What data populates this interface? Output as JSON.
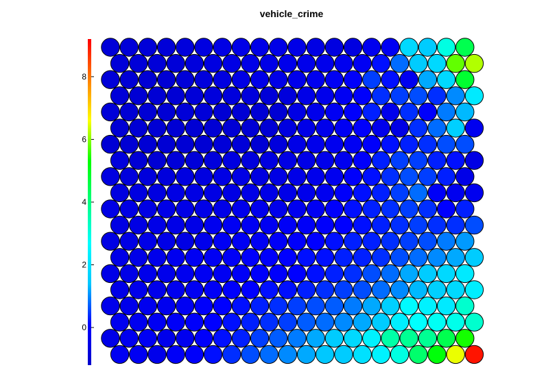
{
  "chart_data": {
    "type": "heatmap",
    "subtype": "hexagonal-som-component-plane",
    "title": "vehicle_crime",
    "xlabel": "",
    "ylabel": "",
    "colorbar": {
      "location": "left",
      "range": [
        -1.2,
        9.2
      ],
      "ticks": [
        0,
        2,
        4,
        6,
        8
      ],
      "tick_labels": [
        "0",
        "2",
        "4",
        "6",
        "8"
      ],
      "colormap": [
        "#0000cc",
        "#0000ff",
        "#00c8ff",
        "#00ffff",
        "#00ff80",
        "#00ff00",
        "#ffff00",
        "#ff8000",
        "#ff0000"
      ]
    },
    "grid": {
      "cols": 20,
      "rows": 20,
      "odd_row_offset": "right"
    },
    "note_values": "values are approximate reads from the colorscale; rows listed top to bottom",
    "values": [
      [
        -0.9,
        -0.9,
        -0.9,
        -0.9,
        -0.8,
        -0.7,
        -0.6,
        -0.5,
        -0.5,
        -0.5,
        -0.5,
        -0.6,
        -0.7,
        -0.7,
        -0.3,
        -0.2,
        1.8,
        1.5,
        3.0,
        4.5
      ],
      [
        -0.9,
        -0.9,
        -0.9,
        -0.9,
        -0.8,
        -0.7,
        -0.6,
        -0.5,
        -0.5,
        -0.4,
        -0.4,
        -0.4,
        -0.3,
        -0.2,
        0.2,
        0.8,
        1.5,
        1.8,
        5.8,
        6.2
      ],
      [
        -0.9,
        -1.0,
        -1.0,
        -1.0,
        -0.9,
        -0.8,
        -0.7,
        -0.6,
        -0.5,
        -0.5,
        -0.4,
        -0.3,
        -0.2,
        0.0,
        0.5,
        0.2,
        -0.3,
        1.2,
        1.8,
        4.8
      ],
      [
        -0.9,
        -1.0,
        -1.0,
        -1.0,
        -0.9,
        -0.8,
        -0.8,
        -0.8,
        -0.9,
        -0.8,
        -0.5,
        -0.4,
        -0.2,
        0.0,
        0.4,
        0.5,
        0.6,
        0.4,
        1.0,
        2.2
      ],
      [
        -0.9,
        -1.0,
        -1.0,
        -1.0,
        -0.9,
        -0.9,
        -1.0,
        -1.0,
        -1.0,
        -1.0,
        -0.6,
        -0.4,
        -0.2,
        0.0,
        0.3,
        -0.4,
        0.4,
        0.0,
        0.9,
        1.3
      ],
      [
        -1.0,
        -1.0,
        -1.0,
        -1.0,
        -1.0,
        -1.0,
        -1.0,
        -1.0,
        -1.0,
        -0.7,
        -0.5,
        -0.4,
        -0.2,
        0.0,
        -0.4,
        -0.6,
        0.4,
        0.8,
        1.6,
        -0.3
      ],
      [
        -1.0,
        -1.0,
        -1.0,
        -1.0,
        -1.0,
        -1.0,
        -0.9,
        -0.9,
        -1.0,
        -0.8,
        -0.5,
        -0.4,
        -0.3,
        -0.2,
        0.0,
        0.2,
        0.3,
        0.4,
        0.6,
        0.6
      ],
      [
        -0.8,
        -1.0,
        -1.0,
        -0.9,
        -0.9,
        -0.8,
        -0.7,
        -0.8,
        -0.7,
        -0.6,
        -0.5,
        -0.4,
        -0.3,
        0.0,
        0.3,
        0.5,
        0.5,
        0.3,
        0.2,
        -0.6
      ],
      [
        -0.7,
        -0.8,
        -0.8,
        -0.8,
        -0.7,
        -0.7,
        -0.6,
        -0.6,
        -0.7,
        -0.6,
        -0.5,
        -0.4,
        -0.3,
        0.0,
        0.2,
        0.4,
        0.6,
        0.5,
        0.3,
        -0.5
      ],
      [
        -0.7,
        -0.7,
        -0.7,
        -0.6,
        -0.6,
        -0.6,
        -0.6,
        -0.5,
        -0.5,
        -0.5,
        -0.4,
        -0.3,
        0.0,
        0.2,
        0.3,
        0.5,
        0.8,
        -0.1,
        -0.3,
        -0.3
      ],
      [
        -0.6,
        -0.6,
        -0.6,
        -0.5,
        -0.5,
        -0.5,
        -0.5,
        -0.4,
        -0.4,
        -0.4,
        -0.3,
        -0.2,
        0.0,
        0.2,
        0.3,
        0.4,
        0.5,
        0.4,
        0.1,
        0.3
      ],
      [
        -0.6,
        -0.6,
        -0.5,
        -0.5,
        -0.5,
        -0.3,
        -0.2,
        -0.2,
        -0.2,
        -0.1,
        -0.1,
        0.0,
        0.1,
        0.2,
        0.3,
        0.4,
        0.5,
        0.4,
        0.4,
        0.6
      ],
      [
        -0.6,
        -0.6,
        -0.5,
        -0.5,
        -0.6,
        -0.4,
        -0.2,
        -0.2,
        -0.2,
        -0.1,
        0.0,
        0.1,
        0.2,
        0.3,
        0.3,
        0.4,
        0.5,
        0.6,
        0.9,
        1.1
      ],
      [
        -0.5,
        -0.5,
        -0.4,
        -0.3,
        -0.2,
        -0.2,
        -0.1,
        0.0,
        0.0,
        0.1,
        0.2,
        0.2,
        0.3,
        0.3,
        0.4,
        0.6,
        0.8,
        1.0,
        1.2,
        1.5
      ],
      [
        -0.5,
        -0.5,
        -0.4,
        -0.4,
        -0.3,
        -0.2,
        -0.2,
        -0.1,
        0.0,
        0.0,
        0.1,
        0.2,
        0.3,
        0.4,
        0.6,
        0.8,
        1.2,
        1.5,
        1.8,
        2.2
      ],
      [
        -0.5,
        -0.4,
        -0.4,
        -0.3,
        -0.2,
        -0.1,
        0.0,
        0.1,
        0.2,
        0.2,
        0.3,
        0.4,
        0.5,
        0.6,
        0.8,
        1.0,
        1.3,
        1.6,
        1.8,
        2.3
      ],
      [
        -0.4,
        -0.4,
        -0.3,
        -0.3,
        -0.2,
        0.0,
        0.1,
        0.2,
        0.3,
        0.4,
        0.5,
        0.6,
        0.7,
        0.9,
        1.2,
        1.6,
        2.6,
        2.4,
        2.2,
        3.2
      ],
      [
        -0.3,
        -0.3,
        -0.2,
        -0.1,
        0.0,
        0.1,
        0.2,
        0.3,
        0.4,
        0.5,
        0.7,
        0.8,
        1.0,
        1.2,
        1.5,
        2.3,
        2.7,
        2.8,
        2.9,
        3.2
      ],
      [
        -0.5,
        -0.3,
        -0.2,
        -0.4,
        -0.3,
        0.0,
        0.2,
        0.3,
        0.5,
        0.7,
        0.9,
        1.2,
        1.5,
        1.8,
        2.4,
        3.6,
        3.8,
        3.8,
        4.5,
        5.4
      ],
      [
        -0.2,
        -0.2,
        -0.4,
        -0.1,
        0.0,
        0.2,
        0.4,
        0.6,
        0.8,
        1.0,
        1.2,
        1.4,
        1.5,
        2.0,
        2.4,
        3.0,
        4.2,
        5.2,
        6.5,
        9.0
      ]
    ]
  }
}
